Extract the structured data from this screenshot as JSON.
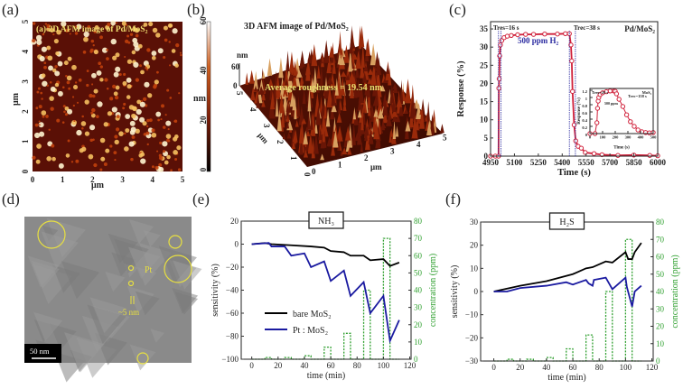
{
  "panel_labels": {
    "a": "(a)",
    "b": "(b)",
    "c": "(c)",
    "d": "(d)",
    "e": "(e)",
    "f": "(f)"
  },
  "afm2d": {
    "title": "(a) 2D AFM image of Pd/MoS₂",
    "xticks": [
      "0",
      "1",
      "2",
      "3",
      "4",
      "5"
    ],
    "yticks": [
      "0",
      "1",
      "2",
      "3",
      "4",
      "5"
    ],
    "xlabel": "μm",
    "ylabel": "μm",
    "colorbar_ticks": [
      "0",
      "20",
      "40",
      "60"
    ],
    "colorbar_label": "nm",
    "colors": [
      "#1a0500",
      "#7a1a05",
      "#c0400c",
      "#f5c060",
      "#fff5d0"
    ]
  },
  "afm3d": {
    "title": "3D AFM image of Pd/MoS₂",
    "roughness": "Average roughness = 19.54 nm",
    "z_label": "nm",
    "z_ticks": [
      "0",
      "60"
    ],
    "x_ticks": [
      "0",
      "1",
      "2",
      "3",
      "4",
      "5"
    ],
    "y_ticks": [
      "0",
      "1",
      "2",
      "3",
      "4",
      "5"
    ],
    "x_label": "μm",
    "y_label": "μm"
  },
  "tem": {
    "pt_label": "Pt",
    "size_label": "~5 nm",
    "scale_bar": "50 nm",
    "highlight_color": "#e8e040"
  },
  "chart_data": [
    {
      "id": "c",
      "type": "line",
      "xlabel": "Time (s)",
      "ylabel": "Response (%)",
      "xlim": [
        4950,
        6000
      ],
      "ylim": [
        0,
        37
      ],
      "xticks": [
        4950,
        5100,
        5250,
        5400,
        5550,
        5700,
        5850,
        6000
      ],
      "yticks": [
        0,
        5,
        10,
        15,
        20,
        25,
        30,
        35
      ],
      "annotations": {
        "tres": "Tres=16 s",
        "trec": "Trec=38 s",
        "gas": "500 ppm H₂",
        "sample": "Pd/MoS₂"
      },
      "series": [
        {
          "color": "#d0203a",
          "marker": "open-circle",
          "x": [
            4950,
            4980,
            5000,
            5002,
            5004,
            5007,
            5012,
            5020,
            5035,
            5055,
            5080,
            5120,
            5170,
            5220,
            5290,
            5370,
            5420,
            5445,
            5455,
            5460,
            5465,
            5475,
            5485,
            5500,
            5520,
            5545,
            5600,
            5650,
            5750,
            5850,
            5950,
            6000
          ],
          "y": [
            0,
            0,
            0,
            18.7,
            21.3,
            27.6,
            30.6,
            31.8,
            32.6,
            33,
            33.2,
            33.4,
            33.5,
            33.5,
            33.6,
            33.6,
            33.7,
            33.7,
            30.6,
            26.2,
            17.8,
            8.6,
            4.2,
            2.7,
            2.2,
            1,
            0.7,
            0.4,
            0.2,
            0.3,
            0.2,
            0.1
          ]
        }
      ],
      "inset": {
        "xlabel": "Time (s)",
        "ylabel": "Response (%)",
        "xlim": [
          0,
          500
        ],
        "ylim": [
          0,
          1.25
        ],
        "xticks": [
          0,
          100,
          200,
          300,
          400,
          500
        ],
        "yticks": [
          0,
          0.2,
          0.4,
          0.6,
          0.8,
          1.0,
          1.2
        ],
        "annotations": {
          "tres": "Tres=29 s",
          "trec": "Trec=158 s",
          "sample": "MoS₂",
          "gas": "500 ppm"
        },
        "x": [
          0,
          40,
          55,
          60,
          65,
          70,
          80,
          100,
          130,
          160,
          190,
          200,
          210,
          230,
          260,
          290,
          320,
          350,
          380,
          410,
          440,
          470,
          500
        ],
        "y": [
          0,
          0,
          0.3,
          0.7,
          0.9,
          1.0,
          1.08,
          1.13,
          1.16,
          1.18,
          1.18,
          1.17,
          1.1,
          0.95,
          0.75,
          0.52,
          0.33,
          0.2,
          0.1,
          0.05,
          0.03,
          0.02,
          0.03
        ]
      }
    },
    {
      "id": "e",
      "type": "line",
      "title": "NH₃",
      "xlabel": "time (min)",
      "ylabel": "sensitivity (%)",
      "y2label": "concentration (ppm)",
      "xlim": [
        -8,
        121
      ],
      "ylim": [
        -100,
        20
      ],
      "y2lim": [
        0,
        80
      ],
      "xticks": [
        0,
        20,
        40,
        60,
        80,
        100,
        120
      ],
      "yticks": [
        -100,
        -80,
        -60,
        -40,
        -20,
        0,
        20
      ],
      "y2ticks": [
        0,
        10,
        20,
        30,
        40,
        50,
        60,
        70,
        80
      ],
      "legend": "center-left",
      "series": [
        {
          "name": "bare MoS₂",
          "color": "#000000",
          "x": [
            0,
            10,
            15,
            30,
            45,
            55,
            60,
            70,
            75,
            85,
            90,
            100,
            105,
            112
          ],
          "y": [
            0,
            1,
            0,
            -1,
            -2,
            -3,
            -6,
            -7,
            -10,
            -10,
            -14,
            -13,
            -19,
            -16
          ]
        },
        {
          "name": "Pt : MoS₂",
          "color": "#1a1aa0",
          "x": [
            0,
            13,
            15,
            25,
            30,
            40,
            45,
            55,
            60,
            70,
            75,
            85,
            90,
            100,
            105,
            112
          ],
          "y": [
            0,
            1,
            -2,
            -2,
            -10,
            -8,
            -20,
            -15,
            -32,
            -23,
            -45,
            -33,
            -60,
            -45,
            -84,
            -66
          ]
        }
      ],
      "concentration": {
        "color": "#30a030",
        "x": [
          0,
          10,
          10,
          15,
          15,
          25,
          25,
          30,
          30,
          40,
          40,
          45,
          45,
          55,
          55,
          60,
          60,
          70,
          70,
          75,
          75,
          85,
          85,
          90,
          90,
          100,
          100,
          105,
          105,
          112
        ],
        "y": [
          0,
          0,
          1,
          1,
          0,
          0,
          1,
          1,
          0,
          0,
          2,
          2,
          0,
          0,
          7,
          7,
          0,
          0,
          15,
          15,
          0,
          0,
          40,
          40,
          0,
          0,
          70,
          70,
          0,
          0
        ]
      }
    },
    {
      "id": "f",
      "type": "line",
      "title": "H₂S",
      "xlabel": "time (min)",
      "ylabel": "sensitivity (%)",
      "y2label": "concentration (ppm)",
      "xlim": [
        -10,
        121
      ],
      "ylim": [
        -30,
        30
      ],
      "y2lim": [
        0,
        80
      ],
      "xticks": [
        0,
        20,
        40,
        60,
        80,
        100,
        120
      ],
      "yticks": [
        -30,
        -20,
        -10,
        0,
        10,
        20,
        30
      ],
      "y2ticks": [
        0,
        10,
        20,
        30,
        40,
        50,
        60,
        70,
        80
      ],
      "series": [
        {
          "color": "#000000",
          "x": [
            0,
            20,
            40,
            60,
            70,
            75,
            85,
            90,
            100,
            102,
            105,
            107,
            112
          ],
          "y": [
            0,
            2.5,
            4.5,
            7.5,
            10,
            10.5,
            13,
            12.5,
            17,
            14,
            14,
            17,
            21
          ]
        },
        {
          "color": "#1a1aa0",
          "x": [
            0,
            10,
            20,
            40,
            55,
            60,
            70,
            72,
            75,
            76,
            85,
            90,
            100,
            101,
            105,
            107,
            112
          ],
          "y": [
            0,
            0,
            1.5,
            2.5,
            4,
            3,
            5,
            3.5,
            2.5,
            5,
            6,
            1,
            6,
            2,
            -6.5,
            0,
            2.5
          ]
        }
      ],
      "concentration": {
        "color": "#30a030",
        "x": [
          0,
          10,
          10,
          15,
          15,
          25,
          25,
          30,
          30,
          40,
          40,
          45,
          45,
          55,
          55,
          60,
          60,
          70,
          70,
          75,
          75,
          85,
          85,
          90,
          90,
          100,
          100,
          105,
          105,
          112
        ],
        "y": [
          0,
          0,
          1,
          1,
          0,
          0,
          1,
          1,
          0,
          0,
          2,
          2,
          0,
          0,
          7,
          7,
          0,
          0,
          15,
          15,
          0,
          0,
          40,
          40,
          0,
          0,
          70,
          70,
          0,
          0
        ]
      }
    }
  ]
}
